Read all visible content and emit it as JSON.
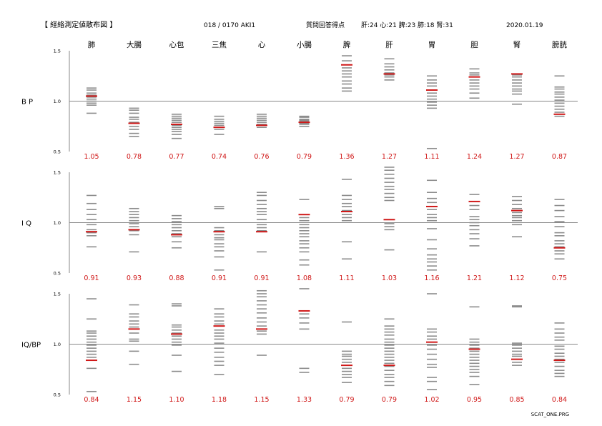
{
  "header": {
    "title": "【 経絡測定値散布図 】",
    "id": "018 / 0170  AKI1",
    "question_label": "質問回答得点",
    "scores": "肝:24 心:21 脾:23 肺:18 腎:31",
    "date": "2020.01.19"
  },
  "footer": {
    "program": "SCAT_ONE.PRG"
  },
  "colors": {
    "gray": "#8c8c8c",
    "red": "#d01818",
    "axis": "#888888"
  },
  "chart_data": {
    "type": "scatter",
    "categories": [
      "肺",
      "大腸",
      "心包",
      "三焦",
      "心",
      "小腸",
      "脾",
      "肝",
      "胃",
      "胆",
      "腎",
      "膀胱"
    ],
    "panels": [
      {
        "label": "B P",
        "ylim": [
          0.5,
          1.5
        ],
        "yticks": [
          "1.5",
          "1.0",
          "0.5"
        ],
        "reference": 1.0,
        "mean_labels": [
          "1.05",
          "0.78",
          "0.77",
          "0.74",
          "0.76",
          "0.79",
          "1.36",
          "1.27",
          "1.11",
          "1.24",
          "1.27",
          "0.87"
        ],
        "means": [
          1.05,
          0.78,
          0.77,
          0.74,
          0.76,
          0.79,
          1.36,
          1.27,
          1.11,
          1.24,
          1.27,
          0.87
        ],
        "points": [
          [
            1.13,
            1.11,
            1.08,
            1.06,
            1.04,
            1.02,
            1.0,
            0.98,
            0.96,
            0.88
          ],
          [
            0.93,
            0.91,
            0.88,
            0.84,
            0.82,
            0.79,
            0.75,
            0.72,
            0.68,
            0.65
          ],
          [
            0.87,
            0.85,
            0.83,
            0.81,
            0.79,
            0.76,
            0.74,
            0.72,
            0.7,
            0.67,
            0.63
          ],
          [
            0.85,
            0.82,
            0.8,
            0.78,
            0.76,
            0.74,
            0.72,
            0.67
          ],
          [
            0.87,
            0.85,
            0.83,
            0.81,
            0.79,
            0.77,
            0.74
          ],
          [
            0.85,
            0.84,
            0.82,
            0.81,
            0.8,
            0.79,
            0.78,
            0.77,
            0.75
          ],
          [
            1.45,
            1.4,
            1.36,
            1.33,
            1.3,
            1.27,
            1.24,
            1.2,
            1.17,
            1.13,
            1.1
          ],
          [
            1.42,
            1.37,
            1.34,
            1.31,
            1.28,
            1.26,
            1.24,
            1.21
          ],
          [
            1.25,
            1.21,
            1.18,
            1.15,
            1.11,
            1.08,
            1.05,
            1.02,
            0.99,
            0.96,
            0.93,
            0.53
          ],
          [
            1.32,
            1.28,
            1.26,
            1.21,
            1.18,
            1.15,
            1.12,
            1.08,
            1.03
          ],
          [
            1.26,
            1.24,
            1.21,
            1.18,
            1.15,
            1.12,
            1.1,
            1.07,
            0.97
          ],
          [
            1.25,
            1.14,
            1.12,
            1.09,
            1.07,
            1.04,
            1.01,
            0.98,
            0.95,
            0.92,
            0.89,
            0.85
          ]
        ]
      },
      {
        "label": "I Q",
        "ylim": [
          0.5,
          1.5
        ],
        "yticks": [
          "1.5",
          "1.0",
          "0.5"
        ],
        "reference": 1.0,
        "mean_labels": [
          "0.91",
          "0.93",
          "0.88",
          "0.91",
          "0.91",
          "1.08",
          "1.11",
          "1.03",
          "1.16",
          "1.21",
          "1.12",
          "0.75"
        ],
        "means": [
          0.91,
          0.93,
          0.88,
          0.91,
          0.91,
          1.08,
          1.11,
          1.03,
          1.16,
          1.21,
          1.12,
          0.75
        ],
        "points": [
          [
            1.27,
            1.19,
            1.13,
            1.08,
            1.03,
            0.98,
            0.93,
            0.9,
            0.87,
            0.76
          ],
          [
            1.14,
            1.11,
            1.08,
            1.05,
            1.02,
            0.99,
            0.96,
            0.92,
            0.88,
            0.71
          ],
          [
            1.07,
            1.04,
            1.01,
            0.98,
            0.95,
            0.92,
            0.89,
            0.86,
            0.81,
            0.75
          ],
          [
            1.16,
            1.14,
            0.95,
            0.92,
            0.88,
            0.85,
            0.83,
            0.79,
            0.76,
            0.72,
            0.66,
            0.53
          ],
          [
            1.3,
            1.27,
            1.22,
            1.18,
            1.14,
            1.11,
            1.08,
            1.03,
            0.98,
            0.95,
            0.92,
            0.71
          ],
          [
            1.23,
            1.08,
            1.05,
            1.02,
            0.98,
            0.95,
            0.92,
            0.89,
            0.86,
            0.82,
            0.79,
            0.75,
            0.71,
            0.63,
            0.58
          ],
          [
            1.43,
            1.27,
            1.23,
            1.19,
            1.16,
            1.12,
            1.08,
            1.05,
            1.02,
            0.81,
            0.64
          ],
          [
            1.55,
            1.52,
            1.48,
            1.44,
            1.4,
            1.36,
            1.33,
            1.29,
            1.25,
            1.22,
            1.03,
            0.99,
            0.96,
            0.93,
            0.73
          ],
          [
            1.42,
            1.3,
            1.24,
            1.2,
            1.13,
            1.08,
            1.05,
            1.02,
            0.94,
            0.83,
            0.74,
            0.68,
            0.64,
            0.61,
            0.57,
            0.53
          ],
          [
            1.28,
            1.17,
            1.13,
            1.06,
            1.03,
            1.0,
            0.97,
            0.93,
            0.89,
            0.84,
            0.77
          ],
          [
            1.26,
            1.22,
            1.18,
            1.14,
            1.1,
            1.07,
            1.05,
            1.02,
            0.98,
            0.86
          ],
          [
            1.23,
            1.17,
            1.12,
            1.06,
            1.01,
            0.96,
            0.9,
            0.87,
            0.82,
            0.79,
            0.76,
            0.72,
            0.69,
            0.64
          ]
        ]
      },
      {
        "label": "IQ/BP",
        "ylim": [
          0.5,
          1.5
        ],
        "yticks": [
          "1.5",
          "1.0",
          "0.5"
        ],
        "reference": 1.0,
        "mean_labels": [
          "0.84",
          "1.15",
          "1.10",
          "1.18",
          "1.15",
          "1.33",
          "0.79",
          "0.79",
          "1.02",
          "0.95",
          "0.85",
          "0.84"
        ],
        "means": [
          0.84,
          1.15,
          1.1,
          1.18,
          1.15,
          1.33,
          0.79,
          0.79,
          1.02,
          0.95,
          0.85,
          0.84
        ],
        "points": [
          [
            1.45,
            1.25,
            1.13,
            1.11,
            1.08,
            1.05,
            1.02,
            0.99,
            0.96,
            0.93,
            0.9,
            0.87,
            0.76,
            0.53
          ],
          [
            1.39,
            1.3,
            1.27,
            1.23,
            1.2,
            1.17,
            1.11,
            1.05,
            1.03,
            0.93,
            0.8
          ],
          [
            1.4,
            1.38,
            1.19,
            1.17,
            1.14,
            1.11,
            1.08,
            1.05,
            1.02,
            0.99,
            0.89,
            0.73
          ],
          [
            1.35,
            1.3,
            1.27,
            1.23,
            1.2,
            1.14,
            1.11,
            1.08,
            1.05,
            1.01,
            0.96,
            0.92,
            0.87,
            0.83,
            0.79,
            0.7
          ],
          [
            1.53,
            1.5,
            1.47,
            1.43,
            1.39,
            1.35,
            1.31,
            1.26,
            1.22,
            1.18,
            1.13,
            1.1,
            0.89
          ],
          [
            1.55,
            1.3,
            1.26,
            1.21,
            1.15,
            0.76,
            0.72
          ],
          [
            1.22,
            0.93,
            0.9,
            0.88,
            0.85,
            0.82,
            0.79,
            0.76,
            0.73,
            0.7,
            0.67,
            0.62
          ],
          [
            1.25,
            1.18,
            1.15,
            1.12,
            1.09,
            1.05,
            1.02,
            0.99,
            0.96,
            0.93,
            0.9,
            0.87,
            0.84,
            0.81,
            0.78,
            0.74,
            0.7,
            0.67,
            0.63,
            0.59
          ],
          [
            1.5,
            1.15,
            1.12,
            1.08,
            1.05,
            0.99,
            0.95,
            0.9,
            0.85,
            0.8,
            0.77,
            0.67,
            0.63,
            0.55
          ],
          [
            1.37,
            1.05,
            1.02,
            0.99,
            0.96,
            0.93,
            0.9,
            0.87,
            0.84,
            0.81,
            0.78,
            0.75,
            0.72,
            0.68,
            0.6
          ],
          [
            1.38,
            1.37,
            1.01,
            0.99,
            0.96,
            0.93,
            0.9,
            0.88,
            0.85,
            0.82,
            0.79
          ],
          [
            1.21,
            1.15,
            1.11,
            1.07,
            1.04,
            0.98,
            0.95,
            0.91,
            0.88,
            0.85,
            0.82,
            0.78,
            0.74,
            0.71,
            0.68
          ]
        ]
      }
    ]
  }
}
